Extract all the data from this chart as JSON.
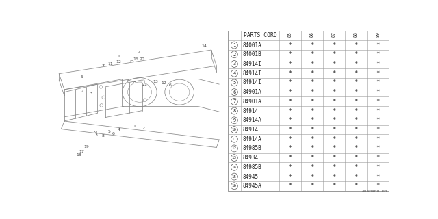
{
  "title": "A840A00100",
  "parts": [
    {
      "num": 1,
      "code": "84001A"
    },
    {
      "num": 2,
      "code": "84001B"
    },
    {
      "num": 3,
      "code": "84914I"
    },
    {
      "num": 4,
      "code": "84914I"
    },
    {
      "num": 5,
      "code": "84914I"
    },
    {
      "num": 6,
      "code": "84901A"
    },
    {
      "num": 7,
      "code": "84901A"
    },
    {
      "num": 8,
      "code": "84914"
    },
    {
      "num": 9,
      "code": "84914A"
    },
    {
      "num": 10,
      "code": "84914"
    },
    {
      "num": 11,
      "code": "84914A"
    },
    {
      "num": 12,
      "code": "84985B"
    },
    {
      "num": 13,
      "code": "84934"
    },
    {
      "num": 14,
      "code": "84985B"
    },
    {
      "num": 15,
      "code": "84945"
    },
    {
      "num": 16,
      "code": "84945A"
    }
  ],
  "year_cols": [
    "85",
    "86",
    "87",
    "88",
    "89"
  ],
  "col_header": "PARTS CORD",
  "bg_color": "#ffffff",
  "line_color": "#999999",
  "text_color": "#222222",
  "diagram_ref": "A840A00100"
}
